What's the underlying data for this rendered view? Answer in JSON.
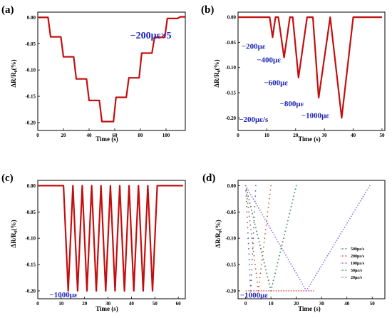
{
  "colors": {
    "frame": "#000000",
    "trace": "#d01010",
    "trace_dark": "#7a1010",
    "annotation": "#1f24b8",
    "series_500": "#4a62b0",
    "series_200": "#c05a30",
    "series_100": "#9a50a0",
    "series_50": "#3a9a5a",
    "series_20": "#9a70e0"
  },
  "chart_data": [
    {
      "id": "a",
      "type": "line",
      "panel_label": "(a)",
      "title": "",
      "xlabel": "Time (s)",
      "ylabel_main": "ΔR/R",
      "ylabel_sub": "0",
      "ylabel_unit": "(%)",
      "xlim": [
        0,
        115
      ],
      "ylim": [
        -0.215,
        0.01
      ],
      "xticks": [
        "0",
        "20",
        "40",
        "60",
        "80",
        "100"
      ],
      "xtick_values": [
        0,
        20,
        40,
        60,
        80,
        100
      ],
      "yticks": [
        "0.00",
        "-0.05",
        "-0.10",
        "-0.15",
        "-0.20"
      ],
      "ytick_values": [
        0,
        -0.05,
        -0.1,
        -0.15,
        -0.2
      ],
      "annotations": [
        {
          "text": "−200με×5",
          "x": 72,
          "y": -0.04
        }
      ],
      "series": [
        {
          "x": [
            0,
            8,
            10,
            18,
            20,
            28,
            30,
            38,
            40,
            48,
            50,
            59,
            61,
            69,
            71,
            79,
            81,
            89,
            91,
            99,
            101,
            109,
            111,
            115
          ],
          "y": [
            0,
            0,
            -0.037,
            -0.037,
            -0.075,
            -0.075,
            -0.117,
            -0.117,
            -0.158,
            -0.158,
            -0.198,
            -0.198,
            -0.152,
            -0.152,
            -0.115,
            -0.115,
            -0.068,
            -0.068,
            -0.038,
            -0.038,
            -0.002,
            -0.002,
            0.001,
            0.001
          ]
        }
      ]
    },
    {
      "id": "b",
      "type": "line",
      "panel_label": "(b)",
      "title": "",
      "xlabel": "Time (s)",
      "ylabel_main": "ΔR/R",
      "ylabel_sub": "0",
      "ylabel_unit": "(%)",
      "xlim": [
        0,
        51
      ],
      "ylim": [
        -0.225,
        0.01
      ],
      "xticks": [
        "0",
        "10",
        "20",
        "30",
        "40",
        "50"
      ],
      "xtick_values": [
        0,
        10,
        20,
        30,
        40,
        50
      ],
      "yticks": [
        "0.00",
        "-0.05",
        "-0.10",
        "-0.15",
        "-0.20"
      ],
      "ytick_values": [
        0,
        -0.05,
        -0.1,
        -0.15,
        -0.2
      ],
      "annotations": [
        {
          "text": "−200με",
          "x": 1.2,
          "y": -0.063
        },
        {
          "text": "−400με",
          "x": 6.5,
          "y": -0.09
        },
        {
          "text": "−600με",
          "x": 9.0,
          "y": -0.135
        },
        {
          "text": "−800με",
          "x": 14.5,
          "y": -0.177
        },
        {
          "text": "−1000με",
          "x": 22.0,
          "y": -0.2
        },
        {
          "text": "−200με/s",
          "x": 0.3,
          "y": -0.208
        }
      ],
      "series": [
        {
          "x": [
            0,
            11,
            12,
            13,
            14,
            16,
            18,
            19,
            21,
            24,
            26,
            28,
            32,
            36,
            40,
            50
          ],
          "y": [
            0,
            0,
            -0.04,
            0,
            0,
            -0.08,
            0,
            0,
            -0.12,
            0,
            0,
            -0.16,
            0,
            -0.2,
            0,
            0
          ]
        }
      ]
    },
    {
      "id": "c",
      "type": "line",
      "panel_label": "(c)",
      "title": "",
      "xlabel": "Time (s)",
      "ylabel_main": "ΔR/R",
      "ylabel_sub": "0",
      "ylabel_unit": "(%)",
      "xlim": [
        0,
        63
      ],
      "ylim": [
        -0.215,
        0.01
      ],
      "xticks": [
        "0",
        "10",
        "20",
        "30",
        "40",
        "50",
        "60"
      ],
      "xtick_values": [
        0,
        10,
        20,
        30,
        40,
        50,
        60
      ],
      "yticks": [
        "0.00",
        "-0.05",
        "-0.10",
        "-0.15",
        "-0.20"
      ],
      "ytick_values": [
        0,
        -0.05,
        -0.1,
        -0.15,
        -0.2
      ],
      "annotations": [
        {
          "text": "−1000με",
          "x": 5.0,
          "y": -0.212
        }
      ],
      "series": [
        {
          "x": [
            0,
            11,
            13,
            15,
            17,
            19,
            21,
            23,
            25,
            27,
            29,
            31,
            33,
            35,
            37,
            39,
            41,
            43,
            45,
            47,
            49,
            51,
            53,
            62
          ],
          "y": [
            0,
            0,
            -0.2,
            0,
            -0.2,
            0,
            -0.2,
            0,
            -0.2,
            0,
            -0.2,
            0,
            -0.2,
            0,
            -0.2,
            0,
            -0.2,
            0,
            -0.2,
            0,
            -0.2,
            0,
            0,
            0
          ]
        }
      ]
    },
    {
      "id": "d",
      "type": "scatter",
      "panel_label": "(d)",
      "title": "",
      "xlabel": "Time (s)",
      "ylabel_main": "ΔR/R",
      "ylabel_sub": "0",
      "ylabel_unit": "(%)",
      "xlim": [
        -3,
        55
      ],
      "ylim": [
        -0.215,
        0.01
      ],
      "xticks": [
        "0",
        "10",
        "20",
        "30",
        "40",
        "50"
      ],
      "xtick_values": [
        0,
        10,
        20,
        30,
        40,
        50
      ],
      "yticks": [
        "0.00",
        "-0.05",
        "-0.10",
        "-0.15",
        "-0.20"
      ],
      "ytick_values": [
        0,
        -0.05,
        -0.1,
        -0.15,
        -0.2
      ],
      "annotations": [
        {
          "text": "−1000με",
          "x": -2.2,
          "y": -0.213
        }
      ],
      "legend_position": "bottom-right",
      "series": [
        {
          "name": "500με/s",
          "color_key": "series_500",
          "x": [
            0,
            2,
            4
          ],
          "y": [
            0,
            -0.2,
            0
          ]
        },
        {
          "name": "200με/s",
          "color_key": "series_200",
          "x": [
            0,
            5,
            10
          ],
          "y": [
            0,
            -0.2,
            0
          ]
        },
        {
          "name": "100με/s",
          "color_key": "series_100",
          "x": [
            0,
            10,
            20
          ],
          "y": [
            0,
            -0.2,
            0
          ]
        },
        {
          "name": "50με/s",
          "color_key": "series_50",
          "x": [
            0,
            10,
            20
          ],
          "y": [
            0,
            -0.2,
            0
          ]
        },
        {
          "name": "20με/s",
          "color_key": "series_20",
          "x": [
            0,
            24,
            49
          ],
          "y": [
            0,
            -0.2,
            0
          ]
        }
      ]
    }
  ]
}
